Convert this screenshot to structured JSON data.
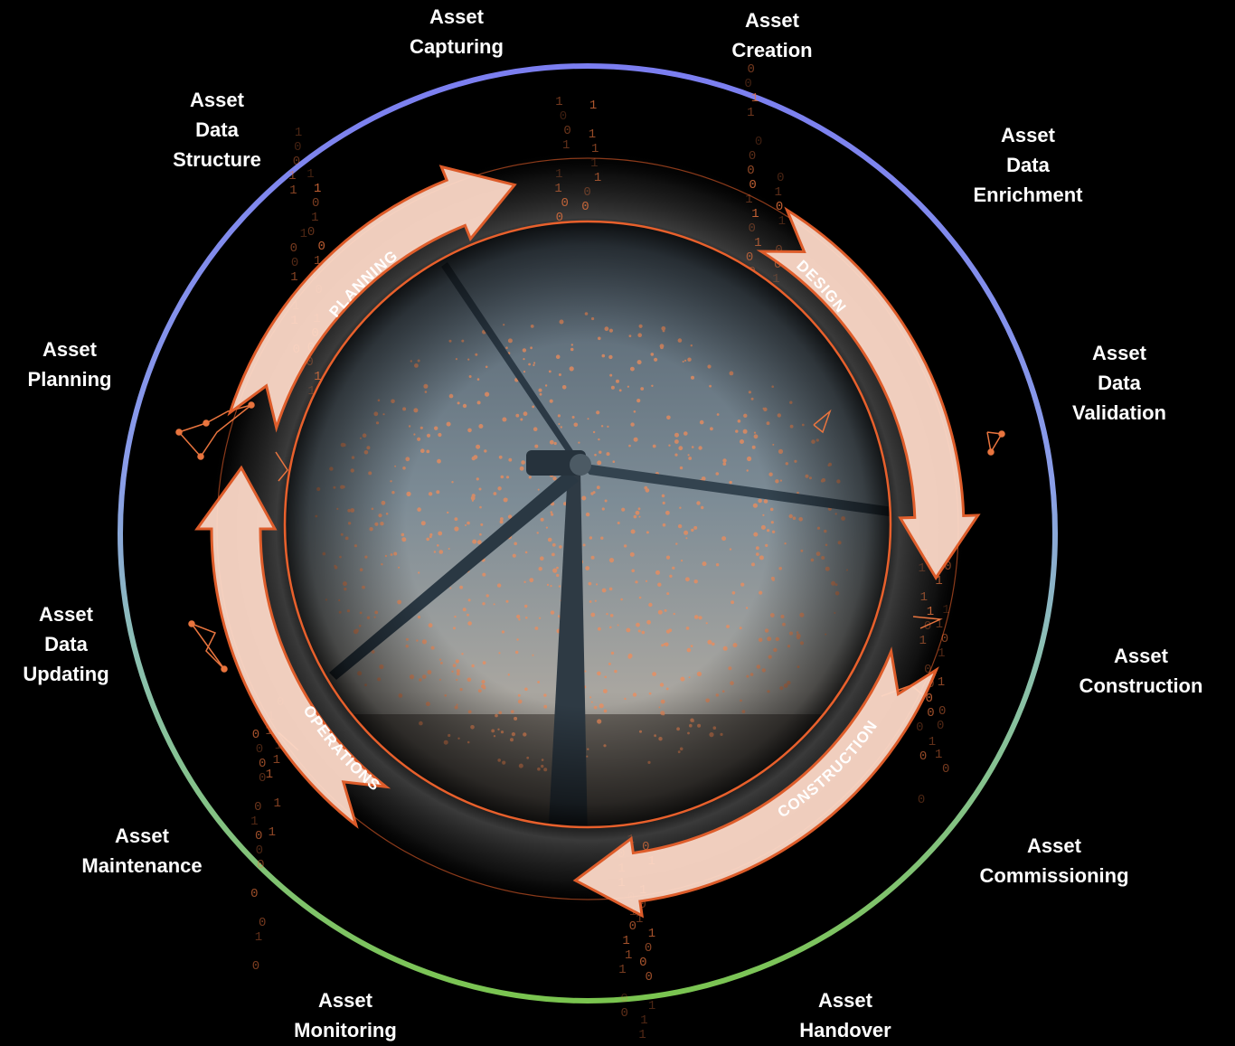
{
  "lifecycle_stages": [
    {
      "id": "capturing",
      "lines": [
        "Asset",
        "Capturing"
      ]
    },
    {
      "id": "creation",
      "lines": [
        "Asset",
        "Creation"
      ]
    },
    {
      "id": "data-enrichment",
      "lines": [
        "Asset",
        "Data",
        "Enrichment"
      ]
    },
    {
      "id": "data-validation",
      "lines": [
        "Asset",
        "Data",
        "Validation"
      ]
    },
    {
      "id": "construction",
      "lines": [
        "Asset",
        "Construction"
      ]
    },
    {
      "id": "commissioning",
      "lines": [
        "Asset",
        "Commissioning"
      ]
    },
    {
      "id": "handover",
      "lines": [
        "Asset",
        "Handover"
      ]
    },
    {
      "id": "monitoring",
      "lines": [
        "Asset",
        "Monitoring"
      ]
    },
    {
      "id": "maintenance",
      "lines": [
        "Asset",
        "Maintenance"
      ]
    },
    {
      "id": "data-updating",
      "lines": [
        "Asset",
        "Data",
        "Updating"
      ]
    },
    {
      "id": "planning",
      "lines": [
        "Asset",
        "Planning"
      ]
    },
    {
      "id": "data-structure",
      "lines": [
        "Asset",
        "Data",
        "Structure"
      ]
    }
  ],
  "phases": {
    "planning": "PLANNING",
    "design": "DESIGN",
    "construction": "CONSTRUCTION",
    "operations": "OPERATIONS"
  },
  "colors": {
    "ring_top": "#7b7ef0",
    "ring_bottom": "#7ac44f",
    "arrow_fill": "#fcd9c8",
    "arrow_stroke": "#e8602c",
    "accent_orange": "#e8743e",
    "sky_top": "#6d7d8a",
    "sky_bottom": "#b7a999"
  }
}
